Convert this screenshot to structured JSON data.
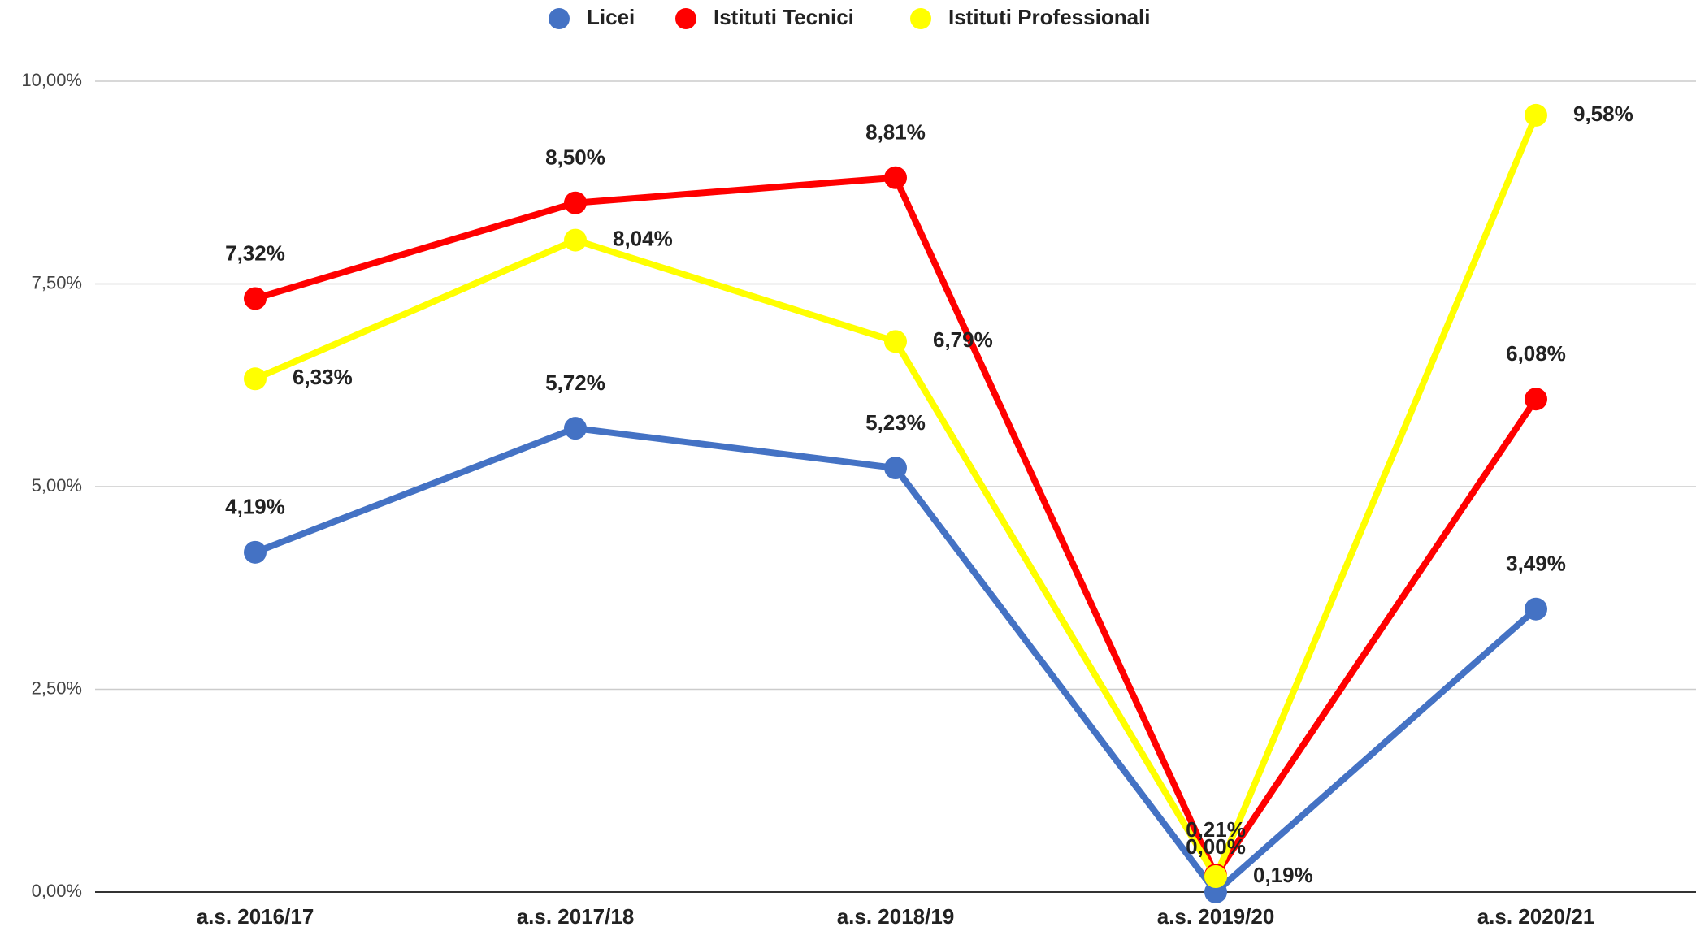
{
  "chart_data": {
    "type": "line",
    "categories": [
      "a.s. 2016/17",
      "a.s. 2017/18",
      "a.s. 2018/19",
      "a.s. 2019/20",
      "a.s. 2020/21"
    ],
    "series": [
      {
        "name": "Licei",
        "color": "#4472c4",
        "values": [
          4.19,
          5.72,
          5.23,
          0.0,
          3.49
        ],
        "value_labels": [
          "4,19%",
          "5,72%",
          "5,23%",
          "0,00%",
          "3,49%"
        ]
      },
      {
        "name": "Istituti Tecnici",
        "color": "#ff0000",
        "values": [
          7.32,
          8.5,
          8.81,
          0.21,
          6.08
        ],
        "value_labels": [
          "7,32%",
          "8,50%",
          "8,81%",
          "0,21%",
          "6,08%"
        ]
      },
      {
        "name": "Istituti Professionali",
        "color": "#ffff00",
        "values": [
          6.33,
          8.04,
          6.79,
          0.19,
          9.58
        ],
        "value_labels": [
          "6,33%",
          "8,04%",
          "6,79%",
          "0,19%",
          "9,58%"
        ]
      }
    ],
    "ylim": [
      0,
      10
    ],
    "yticks": [
      {
        "value": 0,
        "label": "0,00%"
      },
      {
        "value": 2.5,
        "label": "2,50%"
      },
      {
        "value": 5,
        "label": "5,00%"
      },
      {
        "value": 7.5,
        "label": "7,50%"
      },
      {
        "value": 10,
        "label": "10,00%"
      }
    ],
    "grid": true,
    "legend": "top"
  }
}
